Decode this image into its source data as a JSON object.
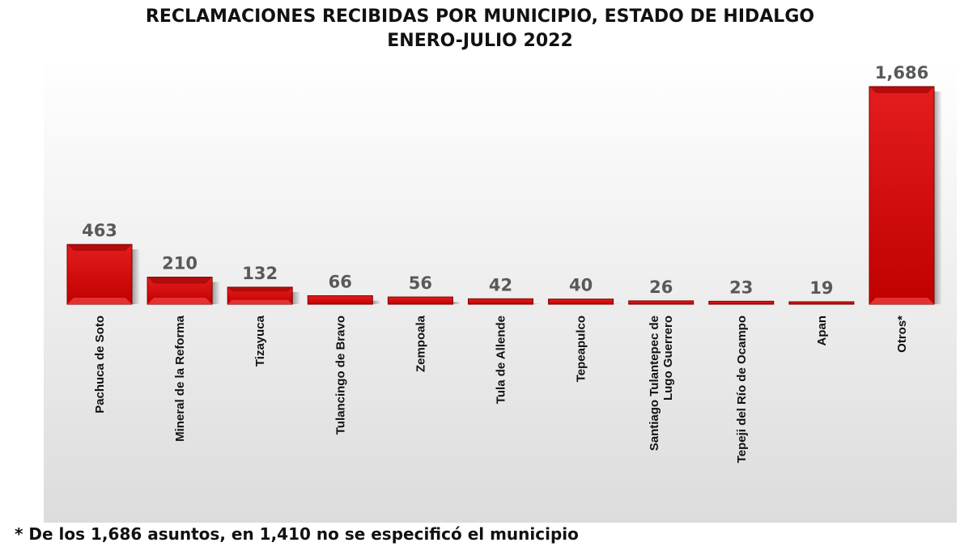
{
  "chart_data": {
    "type": "bar",
    "title": "RECLAMACIONES RECIBIDAS POR MUNICIPIO, ESTADO DE HIDALGO",
    "subtitle": "ENERO-JULIO 2022",
    "categories": [
      [
        "Pachuca de Soto"
      ],
      [
        "Mineral de la Reforma"
      ],
      [
        "Tizayuca"
      ],
      [
        "Tulancingo de Bravo"
      ],
      [
        "Zempoala"
      ],
      [
        "Tula de Allende"
      ],
      [
        "Tepeapulco"
      ],
      [
        "Santiago Tulantepec de",
        "Lugo Guerrero"
      ],
      [
        "Tepeji del Río de Ocampo"
      ],
      [
        "Apan"
      ],
      [
        "Otros*"
      ]
    ],
    "values": [
      463,
      210,
      132,
      66,
      56,
      42,
      40,
      26,
      23,
      19,
      1686
    ],
    "value_labels": [
      "463",
      "210",
      "132",
      "66",
      "56",
      "42",
      "40",
      "26",
      "23",
      "19",
      "1,686"
    ],
    "ylim": [
      0,
      1686
    ],
    "grid": false,
    "bar_color": "#cc0000",
    "footnote": "* De los 1,686 asuntos, en 1,410 no se especificó el municipio"
  }
}
